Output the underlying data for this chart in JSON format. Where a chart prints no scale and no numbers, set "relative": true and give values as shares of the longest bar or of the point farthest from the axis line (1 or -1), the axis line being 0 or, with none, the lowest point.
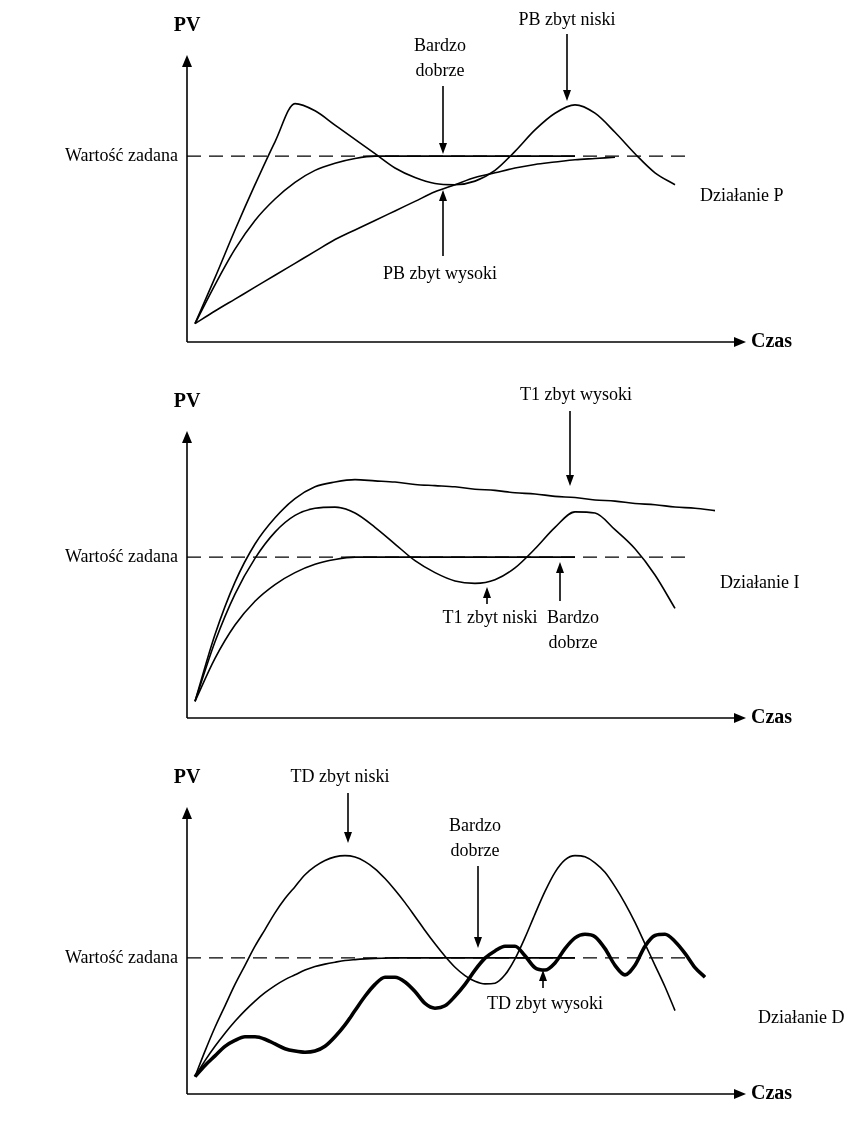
{
  "chart_data": [
    {
      "type": "line",
      "relative": true,
      "xlabel": "Czas",
      "ylabel": "PV",
      "categories": [
        null,
        null,
        null,
        null,
        null,
        null,
        null,
        null,
        null,
        null,
        null,
        null,
        null,
        null,
        null,
        null,
        null,
        null,
        null,
        null,
        null,
        null,
        null,
        null,
        null,
        null,
        null
      ],
      "series": [
        {
          "color": "#000000",
          "values": [
            0.077,
            0.27,
            0.47,
            0.66,
            0.84,
            1.0,
            0.97,
            0.91,
            0.85,
            0.79,
            0.73,
            0.69,
            0.665,
            0.66,
            0.675,
            0.72,
            0.8,
            0.89,
            0.96,
            0.995,
            0.96,
            0.88,
            0.79,
            0.71,
            0.66,
            null,
            null
          ]
        },
        {
          "color": "#000000",
          "values": [
            0.077,
            0.24,
            0.39,
            0.51,
            0.6,
            0.67,
            0.72,
            0.75,
            0.77,
            0.78,
            0.78,
            0.78,
            0.78,
            0.78,
            0.78,
            0.78,
            0.78,
            0.78,
            0.78,
            0.78,
            null,
            null,
            null,
            null,
            null,
            null,
            null
          ]
        },
        {
          "color": "#000000",
          "values": [
            0.077,
            0.13,
            0.18,
            0.23,
            0.28,
            0.33,
            0.38,
            0.43,
            0.47,
            0.51,
            0.55,
            0.59,
            0.63,
            0.66,
            0.69,
            0.71,
            0.73,
            0.745,
            0.755,
            0.765,
            0.77,
            0.775,
            null,
            null,
            null,
            null,
            null
          ]
        }
      ],
      "ref_lines": [
        {
          "axis": "y",
          "value": 0.78,
          "label": "Wartość zadana",
          "line_style": "dashed"
        }
      ],
      "annotations": [
        "Bardzo dobrze",
        "PB zbyt niski",
        "PB zbyt wysoki",
        "Działanie P"
      ]
    },
    {
      "type": "line",
      "relative": true,
      "xlabel": "Czas",
      "ylabel": "PV",
      "categories": [
        null,
        null,
        null,
        null,
        null,
        null,
        null,
        null,
        null,
        null,
        null,
        null,
        null,
        null,
        null,
        null,
        null,
        null,
        null,
        null,
        null,
        null,
        null,
        null,
        null,
        null,
        null
      ],
      "series": [
        {
          "color": "#000000",
          "values": [
            0.07,
            0.35,
            0.57,
            0.73,
            0.84,
            0.92,
            0.97,
            0.99,
            1.0,
            0.995,
            0.99,
            0.98,
            0.975,
            0.97,
            0.96,
            0.955,
            0.945,
            0.94,
            0.93,
            0.925,
            0.915,
            0.91,
            0.9,
            0.895,
            0.885,
            0.88,
            0.87
          ]
        },
        {
          "color": "#000000",
          "values": [
            0.07,
            0.32,
            0.52,
            0.67,
            0.78,
            0.85,
            0.88,
            0.885,
            0.86,
            0.8,
            0.73,
            0.66,
            0.61,
            0.575,
            0.565,
            0.58,
            0.63,
            0.71,
            0.8,
            0.865,
            0.86,
            0.79,
            0.71,
            0.6,
            0.46,
            null,
            null
          ]
        },
        {
          "color": "#000000",
          "values": [
            0.07,
            0.25,
            0.39,
            0.49,
            0.56,
            0.61,
            0.645,
            0.665,
            0.675,
            0.675,
            0.675,
            0.675,
            0.675,
            0.675,
            0.675,
            0.675,
            0.675,
            0.675,
            0.675,
            0.675,
            null,
            null,
            null,
            null,
            null,
            null,
            null
          ]
        }
      ],
      "ref_lines": [
        {
          "axis": "y",
          "value": 0.675,
          "label": "Wartość zadana",
          "line_style": "dashed"
        }
      ],
      "annotations": [
        "T1 zbyt wysoki",
        "T1 zbyt niski",
        "Bardzo dobrze",
        "Działanie I"
      ]
    },
    {
      "type": "line",
      "relative": true,
      "xlabel": "Czas",
      "ylabel": "PV",
      "categories": [
        null,
        null,
        null,
        null,
        null,
        null,
        null,
        null,
        null,
        null,
        null,
        null,
        null,
        null,
        null,
        null,
        null,
        null,
        null,
        null,
        null,
        null,
        null,
        null,
        null,
        null,
        null,
        null,
        null,
        null,
        null,
        null,
        null,
        null,
        null,
        null,
        null,
        null,
        null,
        null,
        null,
        null,
        null,
        null,
        null,
        null,
        null,
        null,
        null,
        null,
        null,
        null,
        null
      ],
      "series": [
        {
          "color": "#000000",
          "values": [
            0.073,
            0.18,
            0.28,
            0.37,
            0.46,
            0.54,
            0.62,
            0.69,
            0.76,
            0.82,
            0.87,
            0.92,
            0.955,
            0.98,
            0.995,
            1.0,
            0.994,
            0.975,
            0.945,
            0.904,
            0.856,
            0.803,
            0.745,
            0.686,
            0.63,
            0.578,
            0.532,
            0.497,
            0.473,
            0.462,
            0.465,
            0.5,
            0.567,
            0.656,
            0.755,
            0.85,
            0.93,
            0.982,
            1.0,
            0.995,
            0.97,
            0.93,
            0.87,
            0.8,
            0.72,
            0.63,
            0.54,
            0.45,
            0.35,
            null,
            null,
            null,
            null
          ]
        },
        {
          "color": "#000000",
          "values": [
            0.073,
            0.14,
            0.2,
            0.255,
            0.305,
            0.35,
            0.39,
            0.425,
            0.455,
            0.48,
            0.5,
            0.52,
            0.535,
            0.545,
            0.553,
            0.56,
            0.564,
            0.567,
            0.569,
            0.57,
            0.571,
            0.571,
            0.571,
            0.571,
            0.571,
            0.571,
            0.571,
            0.571,
            0.571,
            0.571,
            0.571,
            0.571,
            0.571,
            0.571,
            0.571,
            0.571,
            0.571,
            0.571,
            0.571,
            null,
            null,
            null,
            null,
            null,
            null,
            null,
            null,
            null,
            null,
            null,
            null,
            null,
            null
          ]
        },
        {
          "color": "#000000",
          "values": [
            0.073,
            0.12,
            0.16,
            0.2,
            0.225,
            0.24,
            0.24,
            0.23,
            0.21,
            0.19,
            0.18,
            0.175,
            0.18,
            0.2,
            0.24,
            0.29,
            0.35,
            0.41,
            0.46,
            0.49,
            0.49,
            0.47,
            0.43,
            0.38,
            0.36,
            0.37,
            0.41,
            0.46,
            0.52,
            0.57,
            0.6,
            0.62,
            0.62,
            0.58,
            0.53,
            0.52,
            0.55,
            0.61,
            0.655,
            0.67,
            0.66,
            0.61,
            0.54,
            0.5,
            0.54,
            0.62,
            0.665,
            0.67,
            0.64,
            0.59,
            0.53,
            0.49,
            null
          ]
        }
      ],
      "ref_lines": [
        {
          "axis": "y",
          "value": 0.571,
          "label": "Wartość zadana",
          "line_style": "dashed"
        }
      ],
      "annotations": [
        "TD zbyt niski",
        "Bardzo dobrze",
        "TD zbyt wysoki",
        "Działanie D"
      ]
    }
  ]
}
